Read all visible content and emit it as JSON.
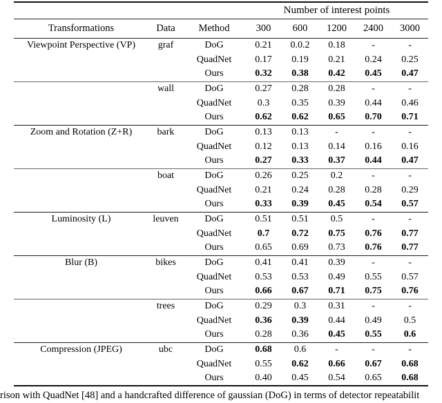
{
  "table": {
    "header_group": "Number of interest points",
    "columns": [
      "Transformations",
      "Data",
      "Method",
      "300",
      "600",
      "1200",
      "2400",
      "3000"
    ],
    "groups": [
      {
        "transformation": "Viewpoint Perspective (VP)",
        "datasets": [
          {
            "data": "graf",
            "rows": [
              {
                "method": "DoG",
                "values": [
                  "0.21",
                  "0.0.2",
                  "0.18",
                  "-",
                  "-"
                ],
                "bold": [
                  0,
                  0,
                  0,
                  0,
                  0
                ]
              },
              {
                "method": "QuadNet",
                "values": [
                  "0.17",
                  "0.19",
                  "0.21",
                  "0.24",
                  "0.25"
                ],
                "bold": [
                  0,
                  0,
                  0,
                  0,
                  0
                ]
              },
              {
                "method": "Ours",
                "values": [
                  "0.32",
                  "0.38",
                  "0.42",
                  "0.45",
                  "0.47"
                ],
                "bold": [
                  1,
                  1,
                  1,
                  1,
                  1
                ]
              }
            ]
          },
          {
            "data": "wall",
            "rows": [
              {
                "method": "DoG",
                "values": [
                  "0.27",
                  "0.28",
                  "0.28",
                  "-",
                  "-"
                ],
                "bold": [
                  0,
                  0,
                  0,
                  0,
                  0
                ]
              },
              {
                "method": "QuadNet",
                "values": [
                  "0.3",
                  "0.35",
                  "0.39",
                  "0.44",
                  "0.46"
                ],
                "bold": [
                  0,
                  0,
                  0,
                  0,
                  0
                ]
              },
              {
                "method": "Ours",
                "values": [
                  "0.62",
                  "0.62",
                  "0.65",
                  "0.70",
                  "0.71"
                ],
                "bold": [
                  1,
                  1,
                  1,
                  1,
                  1
                ]
              }
            ]
          }
        ]
      },
      {
        "transformation": "Zoom and Rotation (Z+R)",
        "datasets": [
          {
            "data": "bark",
            "rows": [
              {
                "method": "DoG",
                "values": [
                  "0.13",
                  "0.13",
                  "-",
                  "-",
                  "-"
                ],
                "bold": [
                  0,
                  0,
                  0,
                  0,
                  0
                ]
              },
              {
                "method": "QuadNet",
                "values": [
                  "0.12",
                  "0.13",
                  "0.14",
                  "0.16",
                  "0.16"
                ],
                "bold": [
                  0,
                  0,
                  0,
                  0,
                  0
                ]
              },
              {
                "method": "Ours",
                "values": [
                  "0.27",
                  "0.33",
                  "0.37",
                  "0.44",
                  "0.47"
                ],
                "bold": [
                  1,
                  1,
                  1,
                  1,
                  1
                ]
              }
            ]
          },
          {
            "data": "boat",
            "rows": [
              {
                "method": "DoG",
                "values": [
                  "0.26",
                  "0.25",
                  "0.2",
                  "-",
                  "-"
                ],
                "bold": [
                  0,
                  0,
                  0,
                  0,
                  0
                ]
              },
              {
                "method": "QuadNet",
                "values": [
                  "0.21",
                  "0.24",
                  "0.28",
                  "0.28",
                  "0.29"
                ],
                "bold": [
                  0,
                  0,
                  0,
                  0,
                  0
                ]
              },
              {
                "method": "Ours",
                "values": [
                  "0.33",
                  "0.39",
                  "0.45",
                  "0.54",
                  "0.57"
                ],
                "bold": [
                  1,
                  1,
                  1,
                  1,
                  1
                ]
              }
            ]
          }
        ]
      },
      {
        "transformation": "Luminosity (L)",
        "datasets": [
          {
            "data": "leuven",
            "rows": [
              {
                "method": "DoG",
                "values": [
                  "0.51",
                  "0.51",
                  "0.5",
                  "-",
                  "-"
                ],
                "bold": [
                  0,
                  0,
                  0,
                  0,
                  0
                ]
              },
              {
                "method": "QuadNet",
                "values": [
                  "0.7",
                  "0.72",
                  "0.75",
                  "0.76",
                  "0.77"
                ],
                "bold": [
                  1,
                  1,
                  1,
                  1,
                  1
                ]
              },
              {
                "method": "Ours",
                "values": [
                  "0.65",
                  "0.69",
                  "0.73",
                  "0.76",
                  "0.77"
                ],
                "bold": [
                  0,
                  0,
                  0,
                  1,
                  1
                ]
              }
            ]
          }
        ]
      },
      {
        "transformation": "Blur (B)",
        "datasets": [
          {
            "data": "bikes",
            "rows": [
              {
                "method": "DoG",
                "values": [
                  "0.41",
                  "0.41",
                  "0.39",
                  "-",
                  "-"
                ],
                "bold": [
                  0,
                  0,
                  0,
                  0,
                  0
                ]
              },
              {
                "method": "QuadNet",
                "values": [
                  "0.53",
                  "0.53",
                  "0.49",
                  "0.55",
                  "0.57"
                ],
                "bold": [
                  0,
                  0,
                  0,
                  0,
                  0
                ]
              },
              {
                "method": "Ours",
                "values": [
                  "0.66",
                  "0.67",
                  "0.71",
                  "0.75",
                  "0.76"
                ],
                "bold": [
                  1,
                  1,
                  1,
                  1,
                  1
                ]
              }
            ]
          },
          {
            "data": "trees",
            "rows": [
              {
                "method": "DoG",
                "values": [
                  "0.29",
                  "0.3",
                  "0.31",
                  "-",
                  "-"
                ],
                "bold": [
                  0,
                  0,
                  0,
                  0,
                  0
                ]
              },
              {
                "method": "QuadNet",
                "values": [
                  "0.36",
                  "0.39",
                  "0.44",
                  "0.49",
                  "0.5"
                ],
                "bold": [
                  1,
                  1,
                  0,
                  0,
                  0
                ]
              },
              {
                "method": "Ours",
                "values": [
                  "0.28",
                  "0.36",
                  "0.45",
                  "0.55",
                  "0.6"
                ],
                "bold": [
                  0,
                  0,
                  1,
                  1,
                  1
                ]
              }
            ]
          }
        ]
      },
      {
        "transformation": "Compression (JPEG)",
        "datasets": [
          {
            "data": "ubc",
            "rows": [
              {
                "method": "DoG",
                "values": [
                  "0.68",
                  "0.6",
                  "-",
                  "-",
                  "-"
                ],
                "bold": [
                  1,
                  0,
                  0,
                  0,
                  0
                ]
              },
              {
                "method": "QuadNet",
                "values": [
                  "0.55",
                  "0.62",
                  "0.66",
                  "0.67",
                  "0.68"
                ],
                "bold": [
                  0,
                  1,
                  1,
                  1,
                  1
                ]
              },
              {
                "method": "Ours",
                "values": [
                  "0.40",
                  "0.45",
                  "0.54",
                  "0.65",
                  "0.68"
                ],
                "bold": [
                  0,
                  0,
                  0,
                  0,
                  1
                ]
              }
            ]
          }
        ]
      }
    ]
  },
  "caption": "rison with QuadNet [48] and a handcrafted difference of gaussian (DoG) in terms of detector repeatabilit"
}
